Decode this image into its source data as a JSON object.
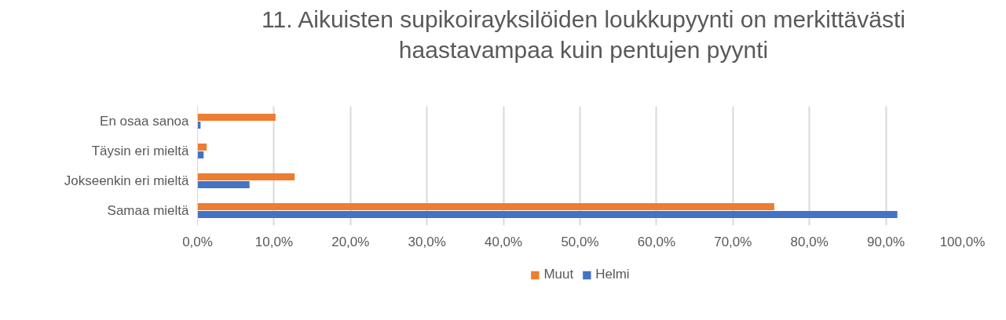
{
  "chart_data": {
    "type": "bar",
    "orientation": "horizontal",
    "title": "11. Aikuisten supikoirayksilöiden loukkupyynti on merkittävästi haastavampaa kuin pentujen pyynti",
    "categories": [
      "En osaa sanoa",
      "Täysin eri mieltä",
      "Jokseenkin eri mieltä",
      "Samaa mieltä"
    ],
    "series": [
      {
        "name": "Muut",
        "color": "#ed7d31",
        "values": [
          10.2,
          1.2,
          12.7,
          75.4
        ]
      },
      {
        "name": "Helmi",
        "color": "#4472c4",
        "values": [
          0.4,
          0.8,
          6.8,
          91.5
        ]
      }
    ],
    "xlim": [
      0,
      100
    ],
    "xticks": [
      {
        "value": 0,
        "label": "0,0%"
      },
      {
        "value": 10,
        "label": "10,0%"
      },
      {
        "value": 20,
        "label": "20,0%"
      },
      {
        "value": 30,
        "label": "30,0%"
      },
      {
        "value": 40,
        "label": "40,0%"
      },
      {
        "value": 50,
        "label": "50,0%"
      },
      {
        "value": 60,
        "label": "60,0%"
      },
      {
        "value": 70,
        "label": "70,0%"
      },
      {
        "value": 80,
        "label": "80,0%"
      },
      {
        "value": 90,
        "label": "90,0%"
      },
      {
        "value": 100,
        "label": "100,0%"
      }
    ],
    "grid": "x",
    "legend": "bottom"
  }
}
